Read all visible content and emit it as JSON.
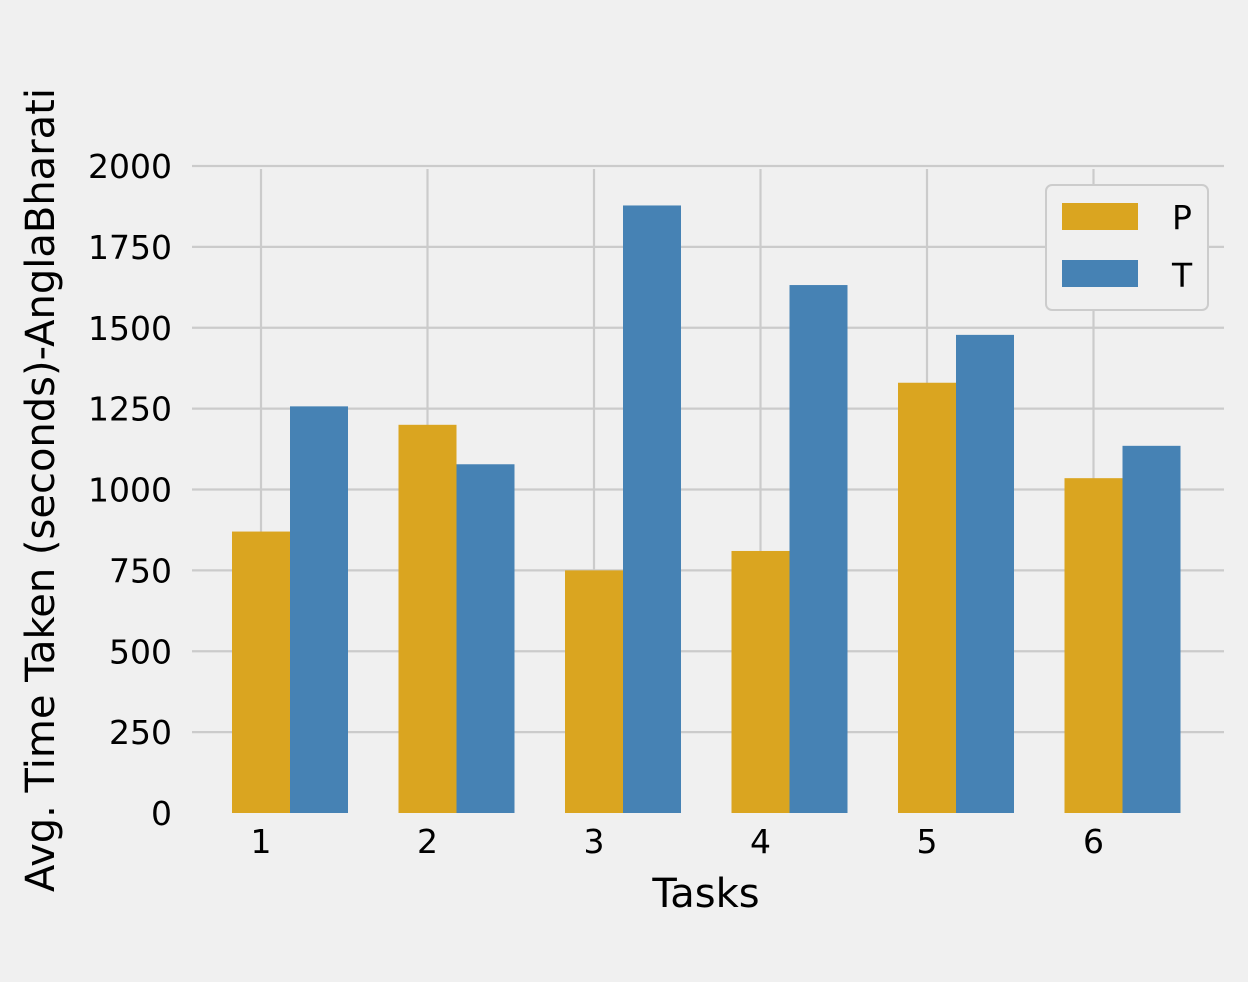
{
  "chart_data": {
    "type": "bar",
    "title": "",
    "xlabel": "Tasks",
    "ylabel": "Avg. Time Taken (seconds)-AnglaBharati",
    "categories": [
      "1",
      "2",
      "3",
      "4",
      "5",
      "6"
    ],
    "series": [
      {
        "name": "P",
        "color": "#daa520",
        "values": [
          870,
          1200,
          750,
          810,
          1330,
          1035
        ]
      },
      {
        "name": "T",
        "color": "#4682b4",
        "values": [
          1257,
          1078,
          1878,
          1632,
          1478,
          1135
        ]
      }
    ],
    "ylim": [
      0,
      2000
    ],
    "yticks": [
      "0",
      "250",
      "500",
      "750",
      "1000",
      "1250",
      "1500",
      "1750",
      "2000"
    ],
    "grid": true,
    "legend_position": "top-right",
    "background": "#f0f0f0"
  }
}
